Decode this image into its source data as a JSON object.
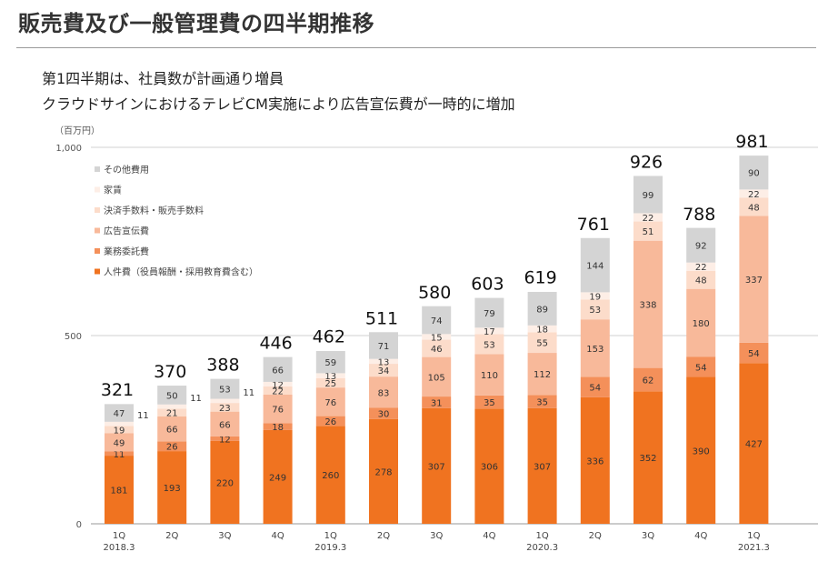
{
  "title": "販売費及び一般管理費の四半期推移",
  "subtitle": [
    "第1四半期は、社員数が計画通り増員",
    "クラウドサインにおけるテレビCM実施により広告宣伝費が一時的に増加"
  ],
  "chart_data": {
    "type": "stacked-bar",
    "unit_label": "（百万円）",
    "ylim": [
      0,
      1000
    ],
    "yticks": [
      0,
      500,
      1000
    ],
    "ytick_labels": [
      "0",
      "500",
      "1,000"
    ],
    "gridlines": true,
    "legend_position": "top-left",
    "categories": [
      "1Q",
      "2Q",
      "3Q",
      "4Q",
      "1Q",
      "2Q",
      "3Q",
      "4Q",
      "1Q",
      "2Q",
      "3Q",
      "4Q",
      "1Q"
    ],
    "year_labels": [
      "2018.3",
      "",
      "",
      "",
      "2019.3",
      "",
      "",
      "",
      "2020.3",
      "",
      "",
      "",
      "2021.3"
    ],
    "totals": [
      321,
      370,
      388,
      446,
      462,
      511,
      580,
      603,
      619,
      761,
      926,
      788,
      981
    ],
    "series": [
      {
        "name": "人件費（役員報酬・採用教育費含む）",
        "color": "#f07320",
        "values": [
          181,
          193,
          220,
          249,
          260,
          278,
          307,
          306,
          307,
          336,
          352,
          390,
          427
        ],
        "label_color": "#333333"
      },
      {
        "name": "業務委託費",
        "color": "#f4905a",
        "values": [
          11,
          26,
          12,
          18,
          26,
          30,
          31,
          35,
          35,
          54,
          62,
          54,
          54
        ],
        "label_color": "#333333"
      },
      {
        "name": "広告宣伝費",
        "color": "#f8b99a",
        "values": [
          49,
          66,
          66,
          76,
          76,
          83,
          105,
          110,
          112,
          153,
          338,
          180,
          337
        ],
        "label_color": "#333333"
      },
      {
        "name": "決済手数料・販売手数料",
        "color": "#fcdcca",
        "values": [
          19,
          21,
          23,
          22,
          25,
          34,
          46,
          53,
          55,
          53,
          51,
          48,
          48
        ],
        "label_color": "#333333"
      },
      {
        "name": "家賃",
        "color": "#fdeee6",
        "values": [
          11,
          11,
          11,
          12,
          13,
          13,
          15,
          17,
          18,
          19,
          22,
          22,
          22
        ],
        "label_color": "#333333"
      },
      {
        "name": "その他費用",
        "color": "#d4d4d4",
        "values": [
          47,
          50,
          53,
          66,
          59,
          71,
          74,
          79,
          89,
          144,
          99,
          92,
          90
        ],
        "label_color": "#333333"
      }
    ],
    "legend_order": [
      5,
      4,
      3,
      2,
      1,
      0
    ]
  }
}
